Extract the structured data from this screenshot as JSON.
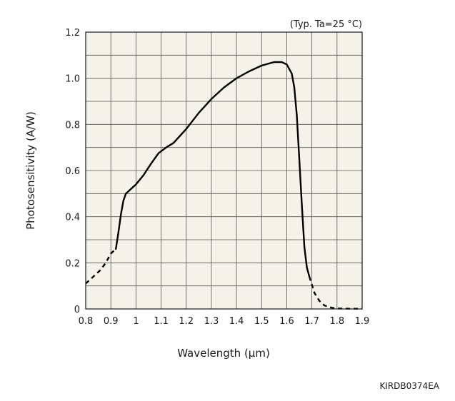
{
  "chart_data": {
    "type": "line",
    "title": "",
    "xlabel": "Wavelength (µm)",
    "ylabel": "Photosensitivity (A/W)",
    "condition_note": "(Typ. Ta=25 °C)",
    "figure_code": "KIRDB0374EA",
    "xlim": [
      0.8,
      1.9
    ],
    "ylim": [
      0,
      1.2
    ],
    "grid": true,
    "x_ticks": [
      0.8,
      0.9,
      1,
      1.1,
      1.2,
      1.3,
      1.4,
      1.5,
      1.6,
      1.7,
      1.8,
      1.9
    ],
    "x_tick_labels": [
      "0.8",
      "0.9",
      "1",
      "1.1",
      "1.2",
      "1.3",
      "1.4",
      "1.5",
      "1.6",
      "1.7",
      "1.8",
      "1.9"
    ],
    "y_ticks": [
      0,
      0.2,
      0.4,
      0.6,
      0.8,
      1.0,
      1.2
    ],
    "y_tick_labels": [
      "0",
      "0.2",
      "0.4",
      "0.6",
      "0.8",
      "1.0",
      "1.2"
    ],
    "colors": {
      "plot_background": "#f5f2ea",
      "grid": "#555555",
      "line": "#000000"
    },
    "series": [
      {
        "style": "dashed",
        "x": [
          0.8,
          0.83,
          0.86,
          0.88,
          0.9,
          0.92
        ],
        "y": [
          0.11,
          0.14,
          0.17,
          0.2,
          0.24,
          0.26
        ]
      },
      {
        "style": "solid",
        "x": [
          0.92,
          0.93,
          0.94,
          0.95,
          0.96,
          0.97,
          1.0,
          1.03,
          1.06,
          1.09,
          1.12,
          1.15,
          1.2,
          1.25,
          1.3,
          1.35,
          1.4,
          1.45,
          1.5,
          1.55,
          1.58,
          1.6,
          1.62,
          1.63,
          1.64,
          1.65,
          1.66,
          1.67,
          1.68,
          1.69
        ],
        "y": [
          0.26,
          0.33,
          0.41,
          0.47,
          0.5,
          0.51,
          0.54,
          0.58,
          0.63,
          0.675,
          0.7,
          0.72,
          0.78,
          0.85,
          0.91,
          0.96,
          1.0,
          1.03,
          1.055,
          1.07,
          1.07,
          1.06,
          1.02,
          0.96,
          0.84,
          0.65,
          0.45,
          0.27,
          0.18,
          0.14
        ]
      },
      {
        "style": "dashed",
        "x": [
          1.69,
          1.71,
          1.73,
          1.75,
          1.78,
          1.81,
          1.85,
          1.9
        ],
        "y": [
          0.14,
          0.07,
          0.035,
          0.015,
          0.005,
          0.002,
          0.001,
          0.001
        ]
      }
    ]
  }
}
